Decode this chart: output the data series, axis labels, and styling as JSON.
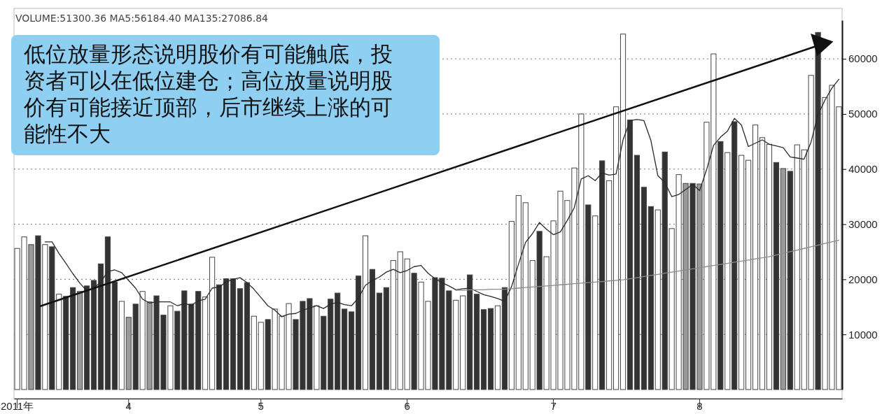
{
  "chart_data": {
    "type": "bar",
    "title": "VOLUME:51300.36 MA5:56184.40 MA135:27086.84",
    "categories": [
      "2011年",
      null,
      null,
      null,
      null,
      null,
      null,
      null,
      null,
      null,
      null,
      null,
      null,
      null,
      null,
      null,
      "4",
      null,
      null,
      null,
      null,
      null,
      null,
      null,
      null,
      null,
      null,
      null,
      null,
      null,
      null,
      null,
      null,
      null,
      null,
      "5",
      null,
      null,
      null,
      null,
      null,
      null,
      null,
      null,
      null,
      null,
      null,
      null,
      null,
      null,
      null,
      null,
      null,
      null,
      null,
      null,
      "6",
      null,
      null,
      null,
      null,
      null,
      null,
      null,
      null,
      null,
      null,
      null,
      null,
      null,
      null,
      null,
      null,
      null,
      null,
      null,
      null,
      "7",
      null,
      null,
      null,
      null,
      null,
      null,
      null,
      null,
      null,
      null,
      null,
      null,
      null,
      null,
      null,
      null,
      null,
      null,
      null,
      null,
      "8",
      null,
      null,
      null,
      null,
      null,
      null,
      null,
      null,
      null,
      null,
      null,
      null,
      null,
      null,
      null,
      null,
      null,
      null,
      null,
      null
    ],
    "series": [
      {
        "colors": [
          "#ffffff",
          "#ffffff",
          "#9a9a9a",
          "#333333",
          "#ffffff",
          "#333333",
          "#ffffff",
          "#333333",
          "#333333",
          "#9a9a9a",
          "#333333",
          "#333333",
          "#333333",
          "#333333",
          "#333333",
          "#ffffff",
          "#9a9a9a",
          "#333333",
          "#ffffff",
          "#9a9a9a",
          "#333333",
          "#333333",
          "#ffffff",
          "#333333",
          "#333333",
          "#333333",
          "#333333",
          "#ffffff",
          "#ffffff",
          "#333333",
          "#333333",
          "#333333",
          "#333333",
          "#333333",
          "#ffffff",
          "#ffffff",
          "#333333",
          "#ffffff",
          "#ffffff",
          "#ffffff",
          "#333333",
          "#333333",
          "#333333",
          "#ffffff",
          "#333333",
          "#333333",
          "#333333",
          "#333333",
          "#333333",
          "#333333",
          "#ffffff",
          "#333333",
          "#333333",
          "#333333",
          "#ffffff",
          "#ffffff",
          "#ffffff",
          "#333333",
          "#ffffff",
          "#ffffff",
          "#333333",
          "#333333",
          "#333333",
          "#ffffff",
          "#ffffff",
          "#333333",
          "#333333",
          "#333333",
          "#333333",
          "#ffffff",
          "#333333",
          "#ffffff",
          "#ffffff",
          "#ffffff",
          "#ffffff",
          "#333333",
          "#ffffff",
          "#ffffff",
          "#ffffff",
          "#ffffff",
          "#ffffff",
          "#ffffff",
          "#333333",
          "#ffffff",
          "#333333",
          "#ffffff",
          "#ffffff",
          "#ffffff",
          "#333333",
          "#333333",
          "#333333",
          "#333333",
          "#ffffff",
          "#333333",
          "#ffffff",
          "#ffffff",
          "#9a9a9a",
          "#333333",
          "#9a9a9a",
          "#ffffff",
          "#ffffff",
          "#333333",
          "#ffffff",
          "#333333",
          "#ffffff",
          "#ffffff",
          "#ffffff",
          "#ffffff",
          "#ffffff",
          "#333333",
          "#9a9a9a",
          "#333333",
          "#ffffff",
          "#ffffff",
          "#ffffff",
          "#333333",
          "#ffffff",
          "#ffffff",
          "#ffffff"
        ],
        "values": [
          25600,
          27700,
          26300,
          27900,
          26300,
          25900,
          17300,
          16900,
          18500,
          17800,
          18800,
          19800,
          22800,
          27700,
          19500,
          16000,
          13100,
          15500,
          17800,
          15900,
          17000,
          13500,
          15200,
          14200,
          17900,
          15500,
          17800,
          16800,
          24000,
          19000,
          20100,
          20100,
          18300,
          19400,
          13300,
          12200,
          12700,
          14600,
          13300,
          15600,
          12700,
          16000,
          16500,
          15200,
          13300,
          16400,
          17500,
          14600,
          14100,
          20600,
          27900,
          21800,
          17500,
          18500,
          23400,
          25000,
          23700,
          21100,
          19500,
          16000,
          20300,
          20200,
          17900,
          16200,
          17000,
          20800,
          17300,
          14500,
          14700,
          15200,
          18500,
          30500,
          35200,
          33900,
          23400,
          28700,
          24100,
          30600,
          36000,
          34300,
          40200,
          50000,
          33500,
          31500,
          41500,
          37900,
          51300,
          64500,
          48900,
          42500,
          36700,
          33200,
          32600,
          43100,
          29200,
          39000,
          37400,
          37400,
          37300,
          48500,
          60900,
          45000,
          43000,
          48600,
          42500,
          41600,
          48000,
          45700,
          44500,
          41200,
          40100,
          39600,
          44400,
          43500,
          57000,
          64800,
          53000,
          55200,
          51300
        ]
      },
      {
        "type": "line",
        "color": "#2a2a2a",
        "values": [
          null,
          null,
          null,
          null,
          26800,
          26800,
          24700,
          22900,
          21000,
          19300,
          17900,
          18400,
          19500,
          21400,
          21700,
          21200,
          19800,
          18400,
          16400,
          15700,
          15900,
          15900,
          15900,
          15200,
          15600,
          15300,
          16100,
          16400,
          18400,
          18600,
          19500,
          20000,
          20300,
          19400,
          18200,
          16700,
          15200,
          14400,
          13200,
          13700,
          13800,
          14400,
          14800,
          15200,
          14700,
          15500,
          15800,
          15400,
          15200,
          16600,
          18900,
          19800,
          20400,
          21300,
          21800,
          21200,
          21600,
          22300,
          22500,
          21100,
          20100,
          19400,
          18800,
          18100,
          18300,
          18400,
          17800,
          17200,
          16900,
          16500,
          16000,
          18700,
          22800,
          26700,
          28300,
          30300,
          29100,
          28100,
          28600,
          30700,
          33000,
          38200,
          38800,
          37900,
          39300,
          38900,
          39100,
          45300,
          48800,
          49000,
          48800,
          45200,
          38800,
          37600,
          35000,
          35400,
          36300,
          37200,
          36100,
          39900,
          44300,
          45800,
          46900,
          49200,
          48000,
          44100,
          44700,
          45300,
          44500,
          44200,
          43900,
          42200,
          42000,
          41800,
          44900,
          49900,
          52500,
          54700,
          56300
        ]
      },
      {
        "type": "line",
        "color": "#8c8c8c",
        "values": [
          null,
          null,
          null,
          null,
          null,
          null,
          null,
          null,
          null,
          null,
          null,
          null,
          null,
          null,
          null,
          null,
          null,
          null,
          null,
          null,
          null,
          null,
          null,
          null,
          null,
          null,
          null,
          null,
          null,
          null,
          null,
          null,
          null,
          null,
          null,
          null,
          null,
          null,
          null,
          null,
          null,
          null,
          null,
          null,
          null,
          null,
          null,
          null,
          null,
          null,
          null,
          null,
          null,
          null,
          null,
          null,
          null,
          null,
          null,
          null,
          null,
          null,
          null,
          18000,
          18000,
          18100,
          18100,
          18100,
          18200,
          18200,
          18200,
          18300,
          18400,
          18500,
          18600,
          18700,
          18800,
          18900,
          19000,
          19100,
          19200,
          19300,
          19400,
          19500,
          19600,
          19700,
          19800,
          19900,
          20100,
          20300,
          20500,
          20700,
          20900,
          21100,
          21300,
          21500,
          21700,
          21900,
          22100,
          22300,
          22500,
          22700,
          22900,
          23100,
          23300,
          23500,
          23700,
          23900,
          24100,
          24400,
          24700,
          25000,
          25300,
          25600,
          25900,
          26200,
          26500,
          26800,
          27100
        ]
      }
    ],
    "ylim": [
      0,
      67000
    ],
    "yticks": [
      10000,
      20000,
      30000,
      40000,
      50000,
      60000
    ],
    "grid": "y",
    "annotations": [
      "低位放量形态说明股价有可能触底，投资者可以在低位建仓；高位放量说明股价有可能接近顶部，后市继续上涨的可能性不大"
    ]
  }
}
